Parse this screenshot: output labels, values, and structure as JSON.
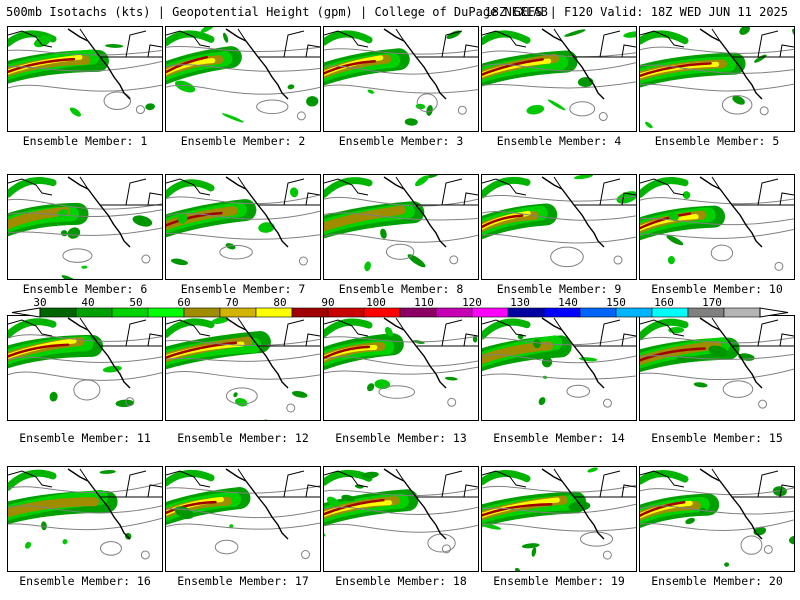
{
  "header": {
    "title_left": "500mb Isotachs (kts) | Geopotential Height (gpm) | College of DuPage NEXLAB",
    "title_right": "18Z GEFS | F120 Valid: 18Z WED JUN 11 2025"
  },
  "panels": [
    {
      "label": "Ensemble Member: 1"
    },
    {
      "label": "Ensemble Member: 2"
    },
    {
      "label": "Ensemble Member: 3"
    },
    {
      "label": "Ensemble Member: 4"
    },
    {
      "label": "Ensemble Member: 5"
    },
    {
      "label": "Ensemble Member: 6"
    },
    {
      "label": "Ensemble Member: 7"
    },
    {
      "label": "Ensemble Member: 8"
    },
    {
      "label": "Ensemble Member: 9"
    },
    {
      "label": "Ensemble Member: 10"
    },
    {
      "label": "Ensemble Member: 11"
    },
    {
      "label": "Ensemble Member: 12"
    },
    {
      "label": "Ensemble Member: 13"
    },
    {
      "label": "Ensemble Member: 14"
    },
    {
      "label": "Ensemble Member: 15"
    },
    {
      "label": "Ensemble Member: 16"
    },
    {
      "label": "Ensemble Member: 17"
    },
    {
      "label": "Ensemble Member: 18"
    },
    {
      "label": "Ensemble Member: 19"
    },
    {
      "label": "Ensemble Member: 20"
    }
  ],
  "colorbar": {
    "tick_labels": [
      "30",
      "40",
      "50",
      "60",
      "70",
      "80",
      "90",
      "100",
      "110",
      "120",
      "130",
      "140",
      "150",
      "160",
      "170"
    ],
    "colors": [
      "#006400",
      "#00a000",
      "#00d200",
      "#00ff00",
      "#a08c00",
      "#d2b400",
      "#ffff00",
      "#a00000",
      "#c80000",
      "#ff0000",
      "#8c0064",
      "#c800b4",
      "#ff00ff",
      "#0000a0",
      "#0000ff",
      "#0064ff",
      "#00b4ff",
      "#00ffff",
      "#808080",
      "#b4b4b4"
    ]
  }
}
